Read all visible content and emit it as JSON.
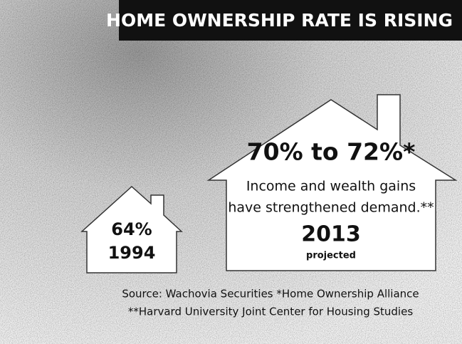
{
  "header": {
    "title": "HOME OWNERSHIP RATE IS RISING"
  },
  "houses": [
    {
      "rate": "64%",
      "year": "1994"
    },
    {
      "rate": "70% to 72%*",
      "text": [
        "Income and wealth gains",
        "have strengthened demand.**"
      ],
      "year": "2013",
      "note": "projected"
    }
  ],
  "source": [
    "Source: Wachovia Securities *Home Ownership Alliance",
    "**Harvard University Joint Center for Housing Studies"
  ]
}
